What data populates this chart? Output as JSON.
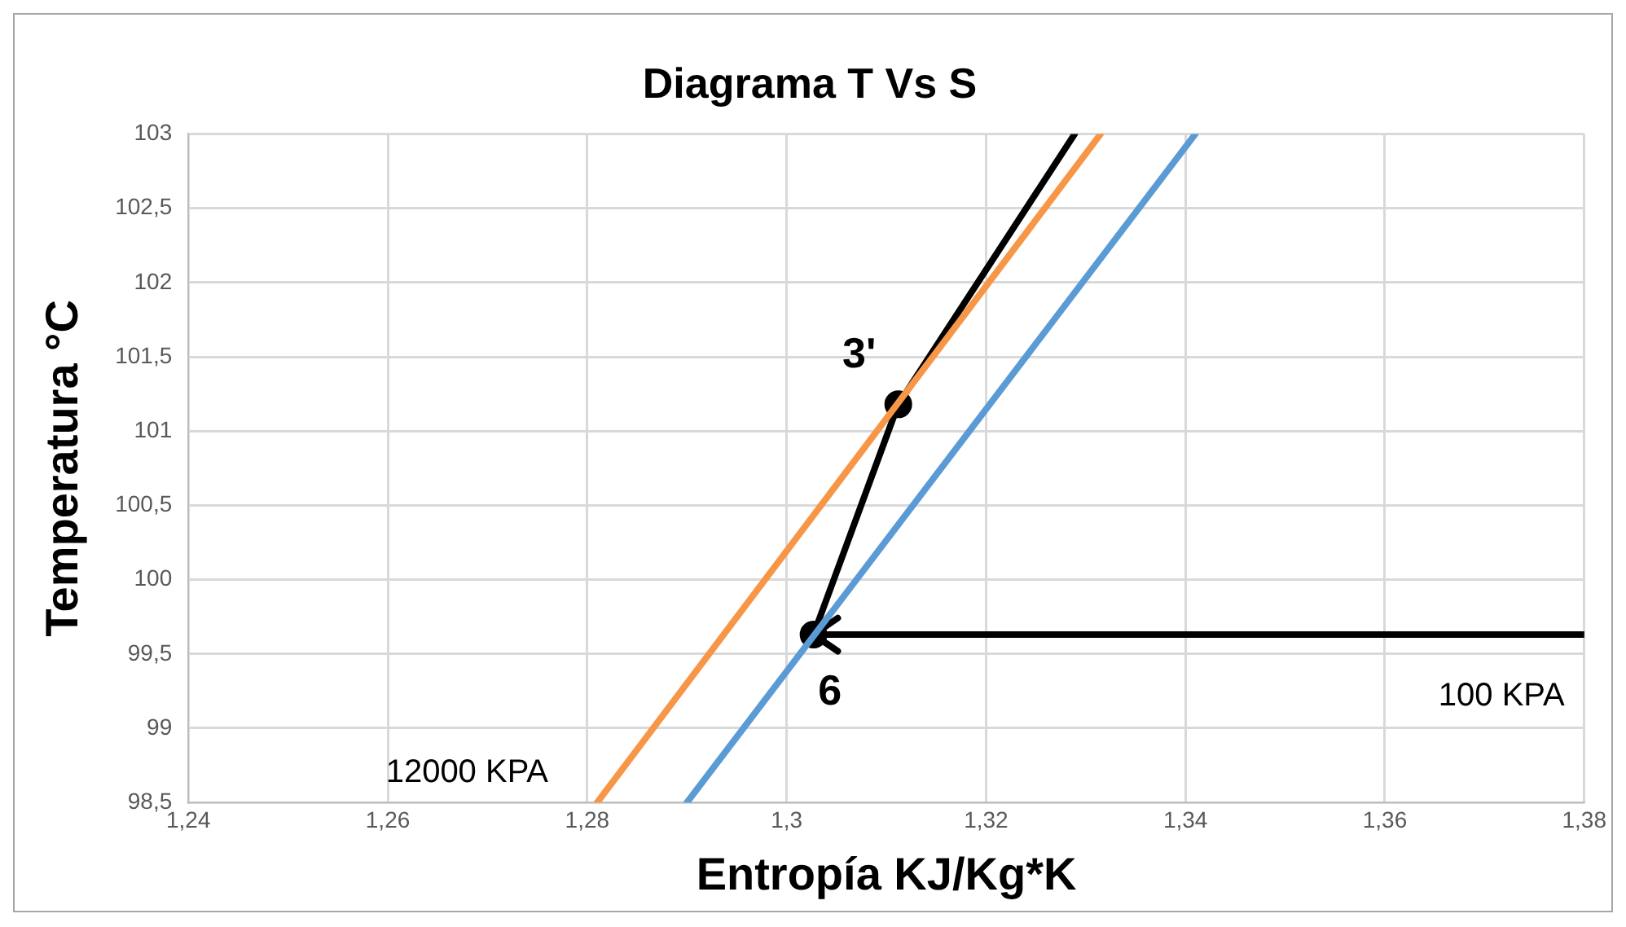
{
  "chart_data": {
    "type": "line",
    "title": "Diagrama T Vs S",
    "xlabel": "Entropía KJ/Kg*K",
    "ylabel": "Temperatura °C",
    "xlim": [
      1.24,
      1.38
    ],
    "xticks": [
      {
        "value": 1.24,
        "label": "1,24"
      },
      {
        "value": 1.26,
        "label": "1,26"
      },
      {
        "value": 1.28,
        "label": "1,28"
      },
      {
        "value": 1.3,
        "label": "1,3"
      },
      {
        "value": 1.32,
        "label": "1,32"
      },
      {
        "value": 1.34,
        "label": "1,34"
      },
      {
        "value": 1.36,
        "label": "1,36"
      },
      {
        "value": 1.38,
        "label": "1,38"
      }
    ],
    "ylim": [
      98.5,
      103
    ],
    "yticks": [
      {
        "value": 98.5,
        "label": "98,5"
      },
      99,
      {
        "value": 99.5,
        "label": "99,5"
      },
      100,
      {
        "value": 100.5,
        "label": "100,5"
      },
      101,
      {
        "value": 101.5,
        "label": "101,5"
      },
      102,
      {
        "value": 102.5,
        "label": "102,5"
      },
      103
    ],
    "grid": true,
    "legend": false,
    "marker": "none",
    "line_style": "solid",
    "series": [
      {
        "color": "#f79646",
        "x": [
          1.281,
          1.3315
        ],
        "values": [
          98.5,
          103
        ]
      },
      {
        "color": "#5b9bd5",
        "x": [
          1.29,
          1.341
        ],
        "values": [
          98.5,
          103
        ]
      },
      {
        "color": "#000000",
        "x": [
          1.38,
          1.3027,
          1.3112,
          1.3289
        ],
        "values": [
          99.63,
          99.63,
          101.18,
          103
        ]
      },
      {
        "type": "scatter",
        "marker": "circle",
        "color": "#000000",
        "x": [
          1.3112,
          1.3027
        ],
        "values": [
          101.18,
          99.63
        ]
      }
    ],
    "annotations": [
      {
        "text": "3'",
        "x": 1.3112,
        "y": 101.18
      },
      {
        "text": "6",
        "x": 1.3027,
        "y": 99.63
      },
      {
        "text": "100 KPA",
        "x": 1.38,
        "y": 99.63
      },
      {
        "text": "12000 KPA",
        "x": 1.281,
        "y": 98.5
      }
    ]
  }
}
